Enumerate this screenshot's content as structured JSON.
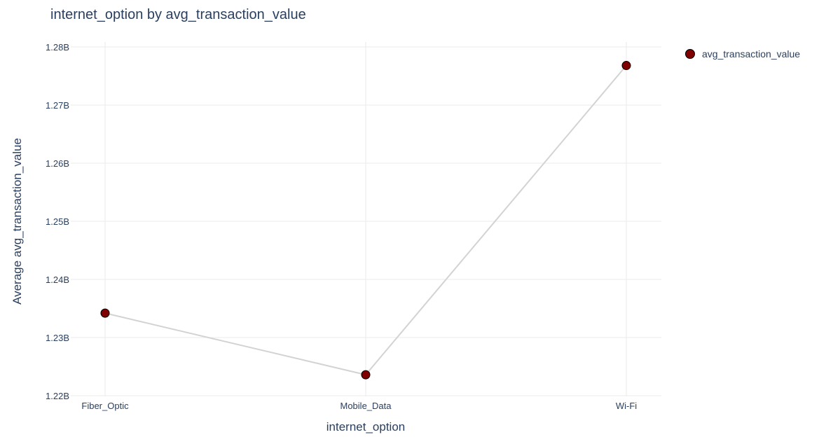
{
  "chart_data": {
    "type": "line",
    "title": "internet_option by avg_transaction_value",
    "xlabel": "internet_option",
    "ylabel": "Average avg_transaction_value",
    "categories": [
      "Fiber_Optic",
      "Mobile_Data",
      "Wi-Fi"
    ],
    "series": [
      {
        "name": "avg_transaction_value",
        "values": [
          1234200000,
          1223600000,
          1276800000
        ]
      }
    ],
    "ylim": [
      1220000000,
      1280000000
    ],
    "yticks": [
      1220000000,
      1230000000,
      1240000000,
      1250000000,
      1260000000,
      1270000000,
      1280000000
    ],
    "ytick_labels": [
      "1.22B",
      "1.23B",
      "1.24B",
      "1.25B",
      "1.26B",
      "1.27B",
      "1.28B"
    ],
    "grid": true,
    "legend_position": "top-right",
    "colors": {
      "marker_fill": "#800000",
      "marker_edge": "#000000",
      "line": "#d3d3d3",
      "grid": "#ebebeb",
      "text": "#2a3f5f"
    }
  }
}
